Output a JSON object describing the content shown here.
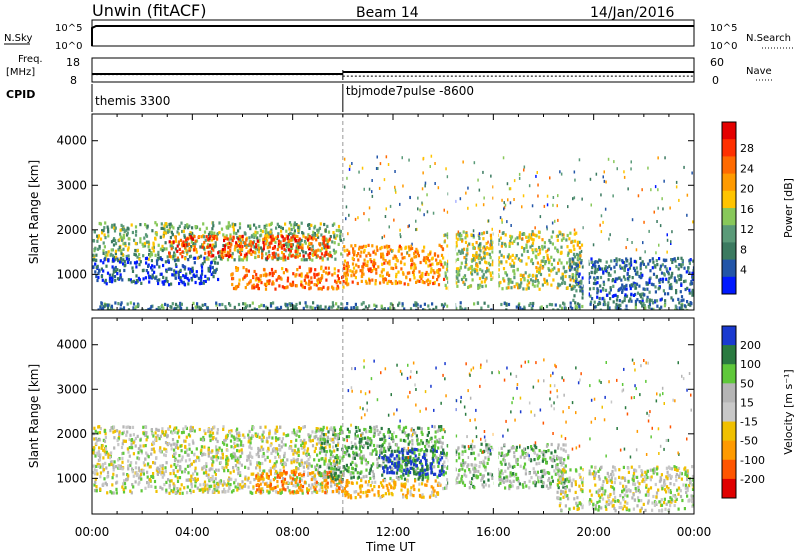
{
  "header": {
    "title": "Unwin (fitACF)",
    "beam": "Beam 14",
    "date": "14/Jan/2016"
  },
  "params": {
    "nsky_label": "N.Sky",
    "nsky_ticks": [
      "10^5",
      "10^0"
    ],
    "nsearch_label": "N.Search",
    "freq_label_1": "Freq.",
    "freq_label_2": "[MHz]",
    "freq_ticks": [
      "18",
      "8"
    ],
    "nave_label": "Nave",
    "nave_ticks": [
      "60",
      "0"
    ],
    "cpid_label": "CPID",
    "cpid_segments": [
      {
        "start_h": 0,
        "end_h": 10,
        "label": "themis 3300"
      },
      {
        "start_h": 10,
        "end_h": 24,
        "label": "tbjmode7pulse -8600"
      }
    ],
    "freq_mhz": [
      {
        "start_h": 0,
        "end_h": 10,
        "value": 11
      },
      {
        "start_h": 10,
        "end_h": 24,
        "value": 12
      }
    ],
    "nave_levels": [
      {
        "start_h": 0,
        "end_h": 10,
        "value": 20
      },
      {
        "start_h": 10,
        "end_h": 24,
        "value": 16
      }
    ]
  },
  "chart_data": [
    {
      "type": "heatmap",
      "ylabel": "Slant Range [km]",
      "xlabel": "Time UT",
      "xlim": [
        0,
        24
      ],
      "ylim": [
        200,
        4600
      ],
      "x_ticks": [
        "00:00",
        "04:00",
        "08:00",
        "12:00",
        "16:00",
        "20:00",
        "00:00"
      ],
      "y_ticks": [
        1000,
        2000,
        3000,
        4000
      ],
      "colorbar": {
        "label": "Power [dB]",
        "ticks": [
          "4",
          "8",
          "12",
          "16",
          "20",
          "24",
          "28"
        ],
        "colors": [
          "#0019ff",
          "#2255a8",
          "#3b7a60",
          "#5a9a78",
          "#88c85a",
          "#ffc400",
          "#ff9a00",
          "#ff6a00",
          "#ff3000",
          "#e40000"
        ]
      },
      "echo_regions": [
        {
          "t0": 0.0,
          "t1": 9.9,
          "r0": 1350,
          "r1": 2200,
          "value": 14
        },
        {
          "t0": 3.0,
          "t1": 9.5,
          "r0": 1400,
          "r1": 1900,
          "value": 26
        },
        {
          "t0": 0.0,
          "t1": 5.0,
          "r0": 800,
          "r1": 1400,
          "value": 6
        },
        {
          "t0": 5.5,
          "t1": 10.0,
          "r0": 700,
          "r1": 1200,
          "value": 24
        },
        {
          "t0": 10.0,
          "t1": 14.0,
          "r0": 800,
          "r1": 1700,
          "value": 22
        },
        {
          "t0": 14.0,
          "t1": 19.5,
          "r0": 700,
          "r1": 2000,
          "value": 16
        },
        {
          "t0": 19.0,
          "t1": 24.0,
          "r0": 400,
          "r1": 1400,
          "value": 8
        },
        {
          "t0": 0.0,
          "t1": 24.0,
          "r0": 200,
          "r1": 400,
          "value": 10
        }
      ]
    },
    {
      "type": "heatmap",
      "ylabel": "Slant Range [km]",
      "xlabel": "Time UT",
      "xlim": [
        0,
        24
      ],
      "ylim": [
        200,
        4600
      ],
      "x_ticks": [
        "00:00",
        "04:00",
        "08:00",
        "12:00",
        "16:00",
        "20:00",
        "00:00"
      ],
      "y_ticks": [
        1000,
        2000,
        3000,
        4000
      ],
      "colorbar": {
        "label": "Velocity [m s⁻¹]",
        "ticks": [
          "200",
          "100",
          "50",
          "15",
          "-15",
          "-50",
          "-100",
          "-200"
        ],
        "colors": [
          "#1a3ad0",
          "#2a7a40",
          "#5fc83a",
          "#b5b5b5",
          "#c8c8c8",
          "#f0c000",
          "#ff9a00",
          "#ff5500",
          "#e00000"
        ]
      },
      "echo_regions": [
        {
          "t0": 0.0,
          "t1": 9.9,
          "r0": 700,
          "r1": 2200,
          "value": 0
        },
        {
          "t0": 6.5,
          "t1": 10.0,
          "r0": 700,
          "r1": 1200,
          "value": -120
        },
        {
          "t0": 9.0,
          "t1": 14.0,
          "r0": 1000,
          "r1": 2200,
          "value": 60
        },
        {
          "t0": 11.5,
          "t1": 14.0,
          "r0": 1100,
          "r1": 1700,
          "value": 180
        },
        {
          "t0": 10.0,
          "t1": 14.0,
          "r0": 600,
          "r1": 1000,
          "value": -80
        },
        {
          "t0": 14.0,
          "t1": 19.0,
          "r0": 800,
          "r1": 1800,
          "value": 40
        },
        {
          "t0": 18.5,
          "t1": 24.0,
          "r0": 300,
          "r1": 1300,
          "value": 0
        }
      ]
    }
  ]
}
